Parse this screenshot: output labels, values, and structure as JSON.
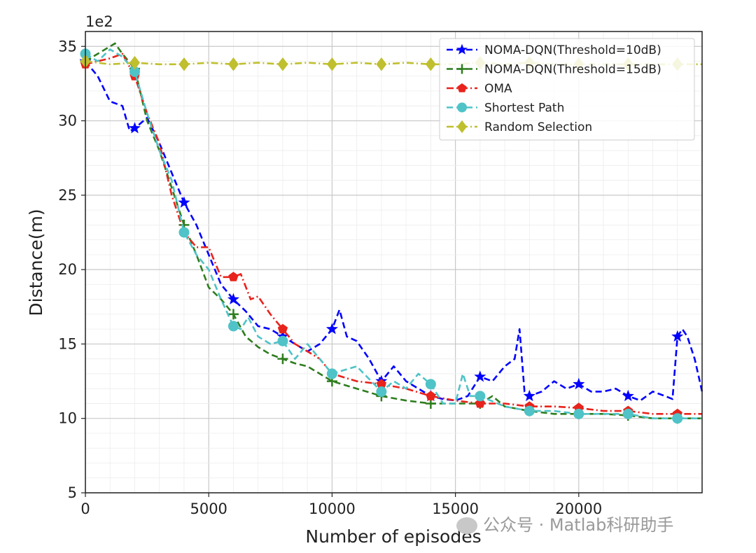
{
  "chart_data": {
    "type": "line",
    "offset_label": "1e2",
    "xlabel": "Number of episodes",
    "ylabel": "Distance(m)",
    "xlim": [
      0,
      25000
    ],
    "ylim": [
      5,
      36
    ],
    "x_ticks": [
      0,
      5000,
      10000,
      15000,
      20000
    ],
    "y_ticks": [
      5,
      10,
      15,
      20,
      25,
      30,
      35
    ],
    "grid": true,
    "legend_position": "top-right",
    "series": [
      {
        "name": "NOMA-DQN(Threshold=10dB)",
        "color": "#0000ff",
        "dash": "dashed",
        "marker": "star",
        "x": [
          0,
          500,
          1000,
          1500,
          1800,
          2000,
          2500,
          3000,
          3500,
          4000,
          4500,
          5000,
          5500,
          6000,
          6500,
          7000,
          7500,
          8000,
          8500,
          9000,
          9500,
          10000,
          10300,
          10600,
          11000,
          11500,
          12000,
          12500,
          13000,
          13500,
          14000,
          14500,
          15000,
          15500,
          16000,
          16500,
          17000,
          17400,
          17600,
          17800,
          18000,
          18500,
          19000,
          19500,
          20000,
          20500,
          21000,
          21500,
          22000,
          22500,
          23000,
          23500,
          23800,
          24000,
          24200,
          24400,
          24700,
          25000
        ],
        "y": [
          34.0,
          33.0,
          31.3,
          31.0,
          29.3,
          29.5,
          30.2,
          28.5,
          26.5,
          24.5,
          23.0,
          21.0,
          19.0,
          18.0,
          17.2,
          16.2,
          16.0,
          15.5,
          15.0,
          14.5,
          15.0,
          16.0,
          17.3,
          15.5,
          15.2,
          14.0,
          12.5,
          13.5,
          12.5,
          12.0,
          11.5,
          11.3,
          11.2,
          11.5,
          12.8,
          12.5,
          13.5,
          14.0,
          16.0,
          11.8,
          11.5,
          11.8,
          12.5,
          12.0,
          12.3,
          11.8,
          11.8,
          12.0,
          11.5,
          11.2,
          11.8,
          11.5,
          11.3,
          15.5,
          16.0,
          15.5,
          14.0,
          11.8
        ]
      },
      {
        "name": "NOMA-DQN(Threshold=15dB)",
        "color": "#2e7d1e",
        "dash": "dashed",
        "marker": "plus",
        "x": [
          0,
          500,
          1000,
          1200,
          1500,
          2000,
          2500,
          3000,
          3500,
          4000,
          4500,
          5000,
          5500,
          6000,
          6500,
          7000,
          7500,
          8000,
          8500,
          9000,
          9500,
          10000,
          11000,
          12000,
          13000,
          14000,
          15000,
          16000,
          16500,
          17000,
          18000,
          19000,
          20000,
          21000,
          22000,
          23000,
          24000,
          25000
        ],
        "y": [
          34.0,
          34.5,
          35.0,
          35.2,
          34.5,
          33.5,
          30.0,
          28.0,
          25.5,
          23.0,
          21.0,
          18.8,
          18.0,
          17.0,
          15.5,
          14.8,
          14.3,
          14.0,
          13.7,
          13.5,
          13.0,
          12.5,
          12.0,
          11.5,
          11.2,
          11.0,
          11.0,
          11.0,
          11.5,
          10.8,
          10.5,
          10.3,
          10.3,
          10.3,
          10.2,
          10.0,
          10.0,
          10.0
        ]
      },
      {
        "name": "OMA",
        "color": "#e8231c",
        "dash": "dashdot",
        "marker": "pentagon",
        "x": [
          0,
          500,
          1000,
          1500,
          2000,
          2500,
          3000,
          3500,
          4000,
          4500,
          5000,
          5500,
          6000,
          6300,
          6700,
          7000,
          7500,
          8000,
          8500,
          9000,
          9500,
          10000,
          11000,
          12000,
          13000,
          14000,
          15000,
          16000,
          17000,
          18000,
          19000,
          20000,
          21000,
          22000,
          23000,
          24000,
          25000
        ],
        "y": [
          33.8,
          34.0,
          34.2,
          34.5,
          33.0,
          30.5,
          28.5,
          25.0,
          22.5,
          21.5,
          21.5,
          19.5,
          19.5,
          19.7,
          18.0,
          18.2,
          17.0,
          16.0,
          15.0,
          14.5,
          14.0,
          13.0,
          12.5,
          12.3,
          12.0,
          11.5,
          11.2,
          11.0,
          11.0,
          10.8,
          10.8,
          10.7,
          10.5,
          10.5,
          10.3,
          10.3,
          10.3
        ]
      },
      {
        "name": "Shortest Path",
        "color": "#4fc3c7",
        "dash": "dashed",
        "marker": "circle",
        "x": [
          0,
          500,
          1000,
          1500,
          2000,
          2500,
          3000,
          3500,
          4000,
          4500,
          5000,
          5500,
          6000,
          6300,
          6600,
          7000,
          7500,
          8000,
          8500,
          9000,
          9500,
          10000,
          11000,
          12000,
          12500,
          13000,
          13500,
          14000,
          14500,
          15000,
          15300,
          15600,
          16000,
          17000,
          18000,
          19000,
          20000,
          21000,
          22000,
          23000,
          24000,
          25000
        ],
        "y": [
          34.5,
          34.0,
          34.8,
          34.3,
          33.3,
          30.5,
          28.0,
          26.0,
          22.5,
          21.0,
          20.0,
          18.0,
          16.2,
          16.0,
          16.8,
          15.5,
          15.0,
          15.2,
          14.0,
          15.0,
          14.0,
          13.0,
          13.5,
          11.8,
          12.5,
          12.0,
          13.0,
          12.3,
          11.0,
          11.0,
          13.0,
          11.5,
          11.5,
          10.8,
          10.5,
          10.5,
          10.3,
          10.3,
          10.3,
          10.0,
          10.0,
          10.0
        ]
      },
      {
        "name": "Random Selection",
        "color": "#bfbf2f",
        "dash": "dashdot",
        "marker": "diamond",
        "x": [
          0,
          1000,
          2000,
          3000,
          4000,
          5000,
          6000,
          7000,
          8000,
          9000,
          10000,
          11000,
          12000,
          13000,
          14000,
          15000,
          16000,
          17000,
          18000,
          19000,
          20000,
          21000,
          22000,
          23000,
          24000,
          25000
        ],
        "y": [
          34.0,
          33.8,
          33.9,
          33.8,
          33.8,
          33.9,
          33.8,
          33.9,
          33.8,
          33.9,
          33.8,
          33.9,
          33.8,
          33.9,
          33.8,
          33.8,
          33.9,
          33.8,
          33.9,
          33.8,
          33.8,
          33.8,
          33.8,
          33.8,
          33.8,
          33.8
        ]
      }
    ]
  },
  "watermark": {
    "text": "公众号 · Matlab科研助手",
    "icon": "wechat-icon"
  }
}
